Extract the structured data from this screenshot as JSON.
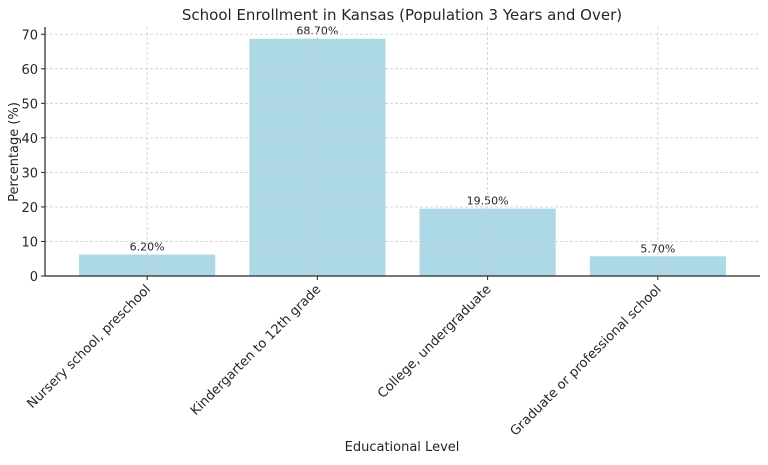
{
  "chart_data": {
    "type": "bar",
    "title": "School Enrollment in Kansas (Population 3 Years and Over)",
    "xlabel": "Educational Level",
    "ylabel": "Percentage (%)",
    "categories": [
      "Nursery school, preschool",
      "Kindergarten to 12th grade",
      "College, undergraduate",
      "Graduate or professional school"
    ],
    "values": [
      6.2,
      68.7,
      19.5,
      5.7
    ],
    "data_labels": [
      "6.20%",
      "68.70%",
      "19.50%",
      "5.70%"
    ],
    "ylim": [
      0,
      72.1
    ],
    "yticks": [
      0,
      10,
      20,
      30,
      40,
      50,
      60,
      70
    ],
    "grid": true,
    "bar_color": "#add8e6"
  }
}
